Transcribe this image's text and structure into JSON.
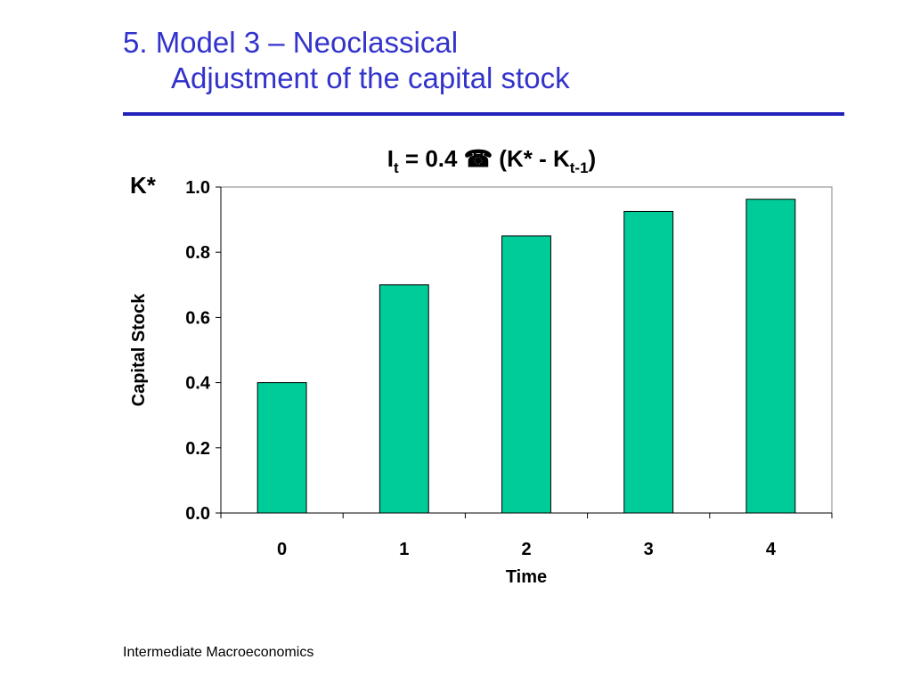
{
  "slide": {
    "title_line1": "5.  Model 3 – Neoclassical",
    "title_line2": "Adjustment of the capital stock",
    "footer": "Intermediate Macroeconomics",
    "title_color": "#3333cc",
    "rule_color": "#2222bb"
  },
  "chart_data": {
    "type": "bar",
    "title": {
      "prefix": "I",
      "prefix_sub": "t",
      "middle": " = 0.4 ",
      "icon": "telephone-icon",
      "icon_glyph": "☎",
      "after_icon": " (K* - K",
      "after_sub": "t-1",
      "suffix": ")"
    },
    "kstar_label": "K*",
    "categories": [
      "0",
      "1",
      "2",
      "3",
      "4"
    ],
    "values": [
      0.4,
      0.7,
      0.85,
      0.925,
      0.9625
    ],
    "xlabel": "Time",
    "ylabel": "Capital Stock",
    "ylim": [
      0,
      1.0
    ],
    "yticks": [
      "0.0",
      "0.2",
      "0.4",
      "0.6",
      "0.8",
      "1.0"
    ],
    "bar_color": "#00cc99",
    "grid": false,
    "legend": "none"
  }
}
